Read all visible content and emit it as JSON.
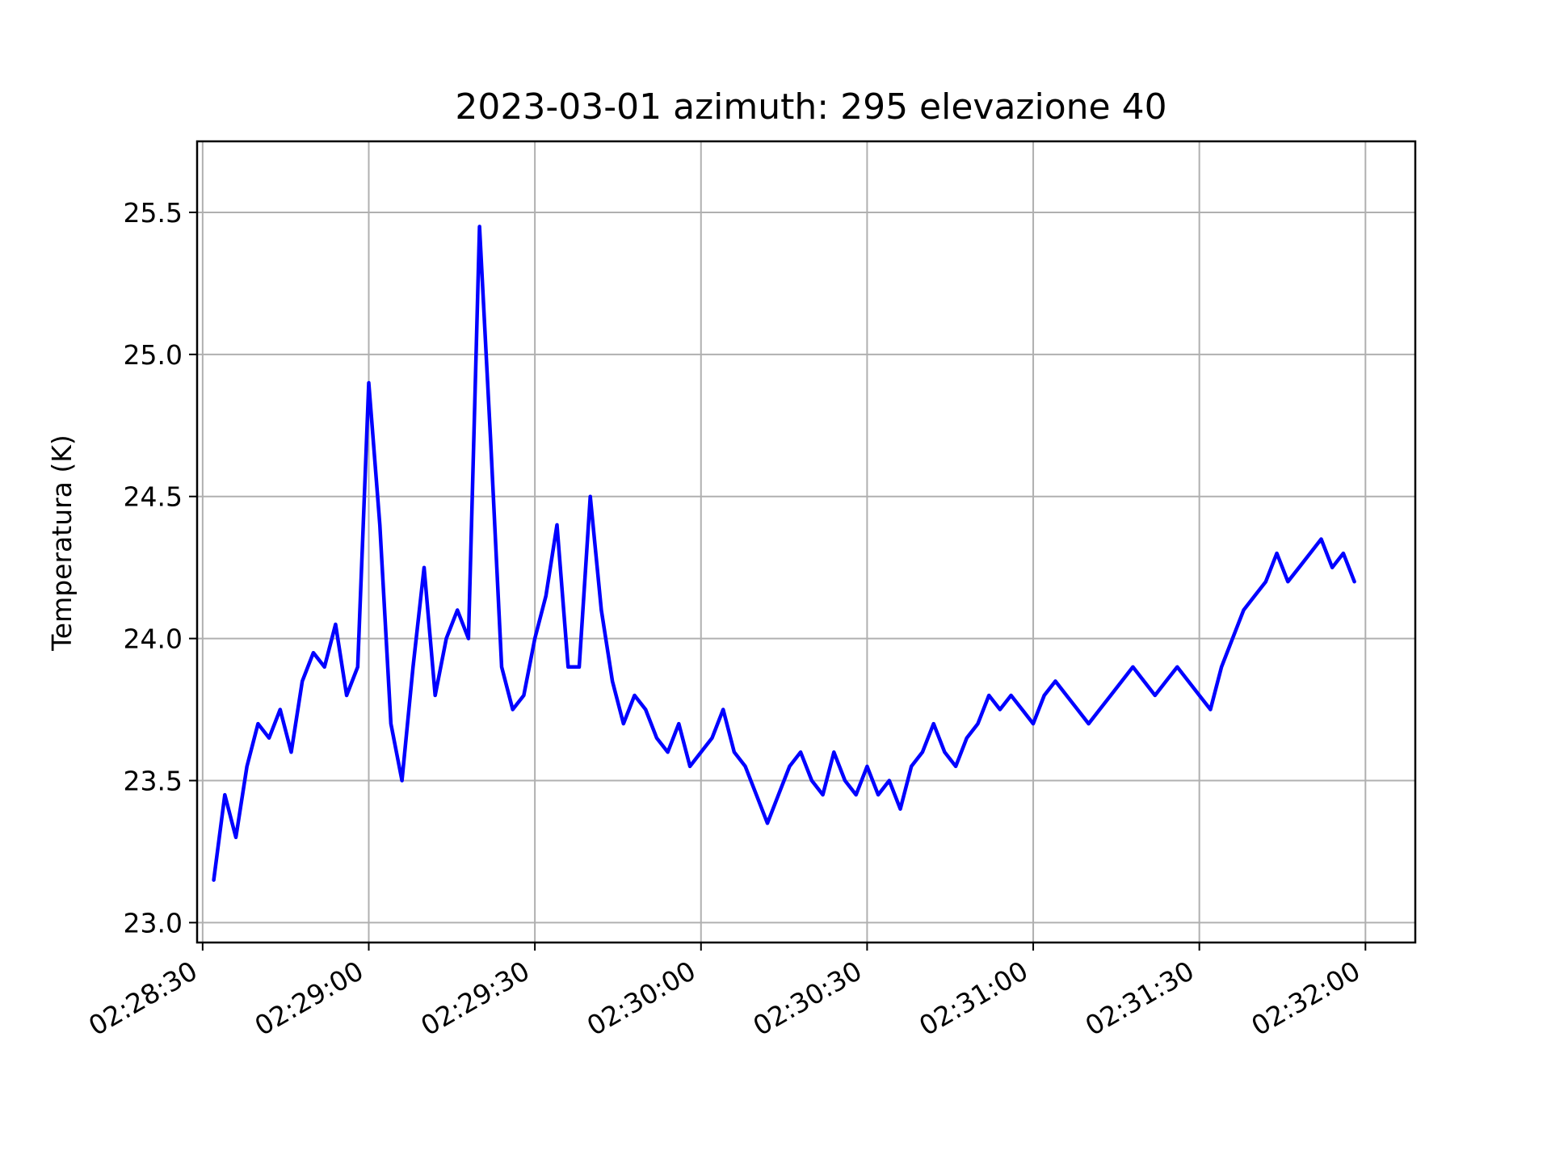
{
  "chart_data": {
    "type": "line",
    "title": "2023-03-01  azimuth: 295 elevazione 40",
    "xlabel": "",
    "ylabel": "Temperatura (K)",
    "x_tick_labels": [
      "02:28:30",
      "02:29:00",
      "02:29:30",
      "02:30:00",
      "02:30:30",
      "02:31:00",
      "02:31:30",
      "02:32:00"
    ],
    "y_tick_labels": [
      "23.0",
      "23.5",
      "24.0",
      "24.5",
      "25.0",
      "25.5"
    ],
    "xlim": [
      "02:28:29",
      "02:32:09"
    ],
    "ylim": [
      22.93,
      25.75
    ],
    "grid": true,
    "line_color": "#0000ff",
    "series": [
      {
        "x": [
          "02:28:32",
          "02:28:34",
          "02:28:36",
          "02:28:38",
          "02:28:40",
          "02:28:42",
          "02:28:44",
          "02:28:46",
          "02:28:48",
          "02:28:50",
          "02:28:52",
          "02:28:54",
          "02:28:56",
          "02:28:58",
          "02:29:00",
          "02:29:02",
          "02:29:04",
          "02:29:06",
          "02:29:08",
          "02:29:10",
          "02:29:12",
          "02:29:14",
          "02:29:16",
          "02:29:18",
          "02:29:20",
          "02:29:22",
          "02:29:24",
          "02:29:26",
          "02:29:28",
          "02:29:30",
          "02:29:32",
          "02:29:34",
          "02:29:36",
          "02:29:38",
          "02:29:40",
          "02:29:42",
          "02:29:44",
          "02:29:46",
          "02:29:48",
          "02:29:50",
          "02:29:52",
          "02:29:54",
          "02:29:56",
          "02:29:58",
          "02:30:00",
          "02:30:02",
          "02:30:04",
          "02:30:06",
          "02:30:08",
          "02:30:10",
          "02:30:12",
          "02:30:14",
          "02:30:16",
          "02:30:18",
          "02:30:20",
          "02:30:22",
          "02:30:24",
          "02:30:26",
          "02:30:28",
          "02:30:30",
          "02:30:32",
          "02:30:34",
          "02:30:36",
          "02:30:38",
          "02:30:40",
          "02:30:42",
          "02:30:44",
          "02:30:46",
          "02:30:48",
          "02:30:50",
          "02:30:52",
          "02:30:54",
          "02:30:56",
          "02:30:58",
          "02:31:00",
          "02:31:02",
          "02:31:04",
          "02:31:06",
          "02:31:08",
          "02:31:10",
          "02:31:12",
          "02:31:14",
          "02:31:16",
          "02:31:18",
          "02:31:20",
          "02:31:22",
          "02:31:24",
          "02:31:26",
          "02:31:28",
          "02:31:30",
          "02:31:32",
          "02:31:34",
          "02:31:36",
          "02:31:38",
          "02:31:40",
          "02:31:42",
          "02:31:44",
          "02:31:46",
          "02:31:48",
          "02:31:50",
          "02:31:52",
          "02:31:54",
          "02:31:56",
          "02:31:58"
        ],
        "values": [
          23.15,
          23.45,
          23.3,
          23.55,
          23.7,
          23.65,
          23.75,
          23.6,
          23.85,
          23.95,
          23.9,
          24.05,
          23.8,
          23.9,
          24.9,
          24.4,
          23.7,
          23.5,
          23.9,
          24.25,
          23.8,
          24.0,
          24.1,
          24.0,
          25.45,
          24.7,
          23.9,
          23.75,
          23.8,
          24.0,
          24.15,
          24.4,
          23.9,
          23.9,
          24.5,
          24.1,
          23.85,
          23.7,
          23.8,
          23.75,
          23.65,
          23.6,
          23.7,
          23.55,
          23.6,
          23.65,
          23.75,
          23.6,
          23.55,
          23.45,
          23.35,
          23.45,
          23.55,
          23.6,
          23.5,
          23.45,
          23.6,
          23.5,
          23.45,
          23.55,
          23.45,
          23.5,
          23.4,
          23.55,
          23.6,
          23.7,
          23.6,
          23.55,
          23.65,
          23.7,
          23.8,
          23.75,
          23.8,
          23.75,
          23.7,
          23.8,
          23.85,
          23.8,
          23.75,
          23.7,
          23.75,
          23.8,
          23.85,
          23.9,
          23.85,
          23.8,
          23.85,
          23.9,
          23.85,
          23.8,
          23.75,
          23.9,
          24.0,
          24.1,
          24.15,
          24.2,
          24.3,
          24.2,
          24.25,
          24.3,
          24.35,
          24.25,
          24.3,
          24.2
        ]
      }
    ]
  }
}
